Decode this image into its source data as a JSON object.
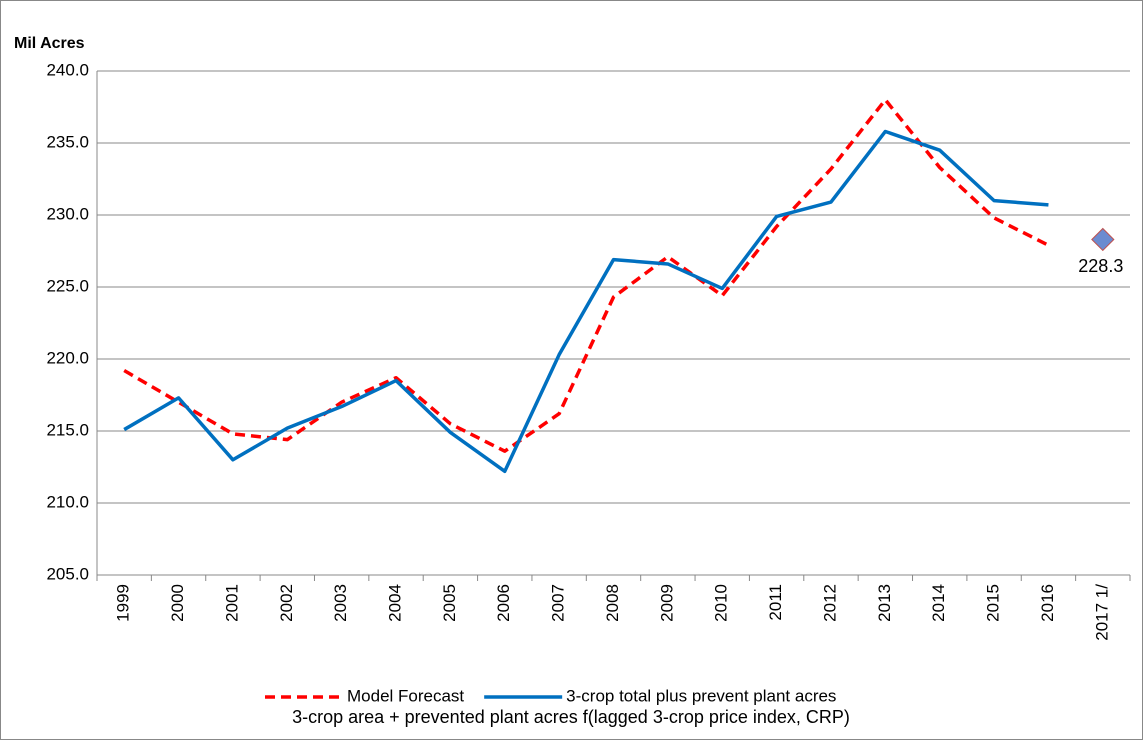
{
  "chart_data": {
    "type": "line",
    "y_label": "Mil Acres",
    "caption": "3-crop area + prevented plant acres f(lagged 3-crop price index, CRP)",
    "categories": [
      "1999",
      "2000",
      "2001",
      "2002",
      "2003",
      "2004",
      "2005",
      "2006",
      "2007",
      "2008",
      "2009",
      "2010",
      "2011",
      "2012",
      "2013",
      "2014",
      "2015",
      "2016",
      "2017 1/"
    ],
    "series": [
      {
        "name": "Model Forecast",
        "color": "#ff0000",
        "dashed": true,
        "values": [
          219.2,
          217.0,
          214.8,
          214.4,
          217.0,
          218.7,
          215.5,
          213.6,
          216.2,
          224.3,
          227.1,
          224.4,
          229.2,
          233.2,
          238.0,
          233.3,
          229.8,
          227.9,
          null
        ]
      },
      {
        "name": "3-crop total plus prevent plant acres",
        "color": "#0070c0",
        "dashed": false,
        "values": [
          215.1,
          217.3,
          213.0,
          215.2,
          216.7,
          218.5,
          214.9,
          212.2,
          220.3,
          226.9,
          226.6,
          224.9,
          229.9,
          230.9,
          235.8,
          234.5,
          231.0,
          230.7,
          null
        ]
      },
      {
        "color": "#6b8bd0",
        "marker": "diamond",
        "values": [
          null,
          null,
          null,
          null,
          null,
          null,
          null,
          null,
          null,
          null,
          null,
          null,
          null,
          null,
          null,
          null,
          null,
          null,
          228.3
        ]
      }
    ],
    "ylim": [
      205,
      240
    ],
    "yticks": [
      {
        "value": 205,
        "label": "205.0"
      },
      {
        "value": 210,
        "label": "210.0"
      },
      {
        "value": 215,
        "label": "215.0"
      },
      {
        "value": 220,
        "label": "220.0"
      },
      {
        "value": 225,
        "label": "225.0"
      },
      {
        "value": 230,
        "label": "230.0"
      },
      {
        "value": 235,
        "label": "235.0"
      },
      {
        "value": 240,
        "label": "240.0"
      }
    ],
    "grid": true
  }
}
